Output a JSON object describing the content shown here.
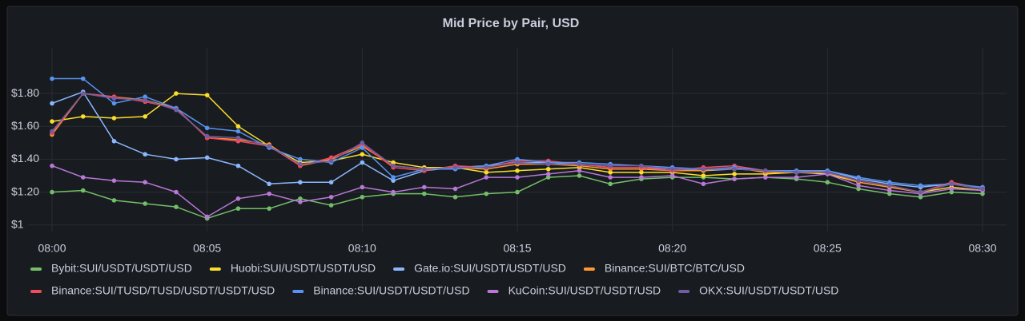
{
  "chart_data": {
    "type": "line",
    "title": "Mid Price by Pair, USD",
    "categories": [
      "08:00",
      null,
      null,
      null,
      null,
      "08:05",
      null,
      null,
      null,
      null,
      "08:10",
      null,
      null,
      null,
      null,
      "08:15",
      null,
      null,
      null,
      null,
      "08:20",
      null,
      null,
      null,
      null,
      "08:25",
      null,
      null,
      null,
      null,
      "08:30"
    ],
    "ylim": [
      0.96,
      1.98
    ],
    "yticks": [
      {
        "value": 1,
        "label": "$1"
      },
      {
        "value": 1.2,
        "label": "$1.20"
      },
      {
        "value": 1.4,
        "label": "$1.40"
      },
      {
        "value": 1.6,
        "label": "$1.60"
      },
      {
        "value": 1.8,
        "label": "$1.80"
      }
    ],
    "grid": true,
    "legend": "bottom",
    "series": [
      {
        "name": "Bybit:SUI/USDT/USDT/USD",
        "color": "#73bf69",
        "values": [
          1.2,
          1.21,
          1.15,
          1.13,
          1.11,
          1.04,
          1.1,
          1.1,
          1.16,
          1.12,
          1.17,
          1.19,
          1.19,
          1.17,
          1.19,
          1.2,
          1.29,
          1.3,
          1.25,
          1.28,
          1.29,
          1.29,
          1.28,
          1.29,
          1.28,
          1.26,
          1.22,
          1.19,
          1.17,
          1.2,
          1.19
        ]
      },
      {
        "name": "Huobi:SUI/USDT/USDT/USD",
        "color": "#fade2a",
        "values": [
          1.63,
          1.66,
          1.65,
          1.66,
          1.8,
          1.79,
          1.6,
          1.48,
          1.38,
          1.39,
          1.43,
          1.38,
          1.35,
          1.35,
          1.32,
          1.33,
          1.34,
          1.35,
          1.32,
          1.32,
          1.32,
          1.3,
          1.31,
          1.31,
          1.32,
          1.31,
          1.26,
          1.23,
          1.2,
          1.23,
          1.21
        ]
      },
      {
        "name": "Gate.io:SUI/USDT/USDT/USD",
        "color": "#8ab8ff",
        "values": [
          1.74,
          1.81,
          1.51,
          1.43,
          1.4,
          1.41,
          1.36,
          1.25,
          1.26,
          1.26,
          1.38,
          1.27,
          1.33,
          1.35,
          1.36,
          1.38,
          1.38,
          1.37,
          1.35,
          1.35,
          1.34,
          1.33,
          1.34,
          1.33,
          1.32,
          1.33,
          1.28,
          1.25,
          1.23,
          1.25,
          1.22
        ]
      },
      {
        "name": "Binance:SUI/BTC/BTC/USD",
        "color": "#ff9830",
        "values": [
          1.55,
          1.8,
          1.78,
          1.76,
          1.71,
          1.53,
          1.52,
          1.49,
          1.36,
          1.4,
          1.48,
          1.36,
          1.34,
          1.35,
          1.34,
          1.37,
          1.37,
          1.36,
          1.34,
          1.34,
          1.33,
          1.33,
          1.35,
          1.32,
          1.32,
          1.32,
          1.26,
          1.23,
          1.2,
          1.25,
          1.22
        ]
      },
      {
        "name": "Binance:SUI/TUSD/TUSD/USDT/USDT/USD",
        "color": "#f2495c",
        "values": [
          1.56,
          1.8,
          1.78,
          1.75,
          1.71,
          1.53,
          1.51,
          1.48,
          1.36,
          1.41,
          1.49,
          1.35,
          1.33,
          1.36,
          1.35,
          1.39,
          1.39,
          1.37,
          1.35,
          1.35,
          1.33,
          1.35,
          1.36,
          1.33,
          1.33,
          1.32,
          1.27,
          1.24,
          1.2,
          1.26,
          1.22
        ]
      },
      {
        "name": "Binance:SUI/USDT/USDT/USD",
        "color": "#5794f2",
        "values": [
          1.89,
          1.89,
          1.74,
          1.78,
          1.71,
          1.59,
          1.57,
          1.47,
          1.4,
          1.38,
          1.47,
          1.29,
          1.34,
          1.34,
          1.36,
          1.4,
          1.38,
          1.38,
          1.37,
          1.36,
          1.35,
          1.34,
          1.35,
          1.33,
          1.33,
          1.33,
          1.29,
          1.26,
          1.24,
          1.25,
          1.23
        ]
      },
      {
        "name": "KuCoin:SUI/USDT/USDT/USD",
        "color": "#b877d9",
        "values": [
          1.36,
          1.29,
          1.27,
          1.26,
          1.2,
          1.05,
          1.16,
          1.19,
          1.14,
          1.17,
          1.23,
          1.2,
          1.23,
          1.22,
          1.29,
          1.29,
          1.31,
          1.33,
          1.29,
          1.29,
          1.3,
          1.25,
          1.28,
          1.29,
          1.29,
          1.31,
          1.24,
          1.21,
          1.19,
          1.22,
          1.21
        ]
      },
      {
        "name": "OKX:SUI/USDT/USDT/USD",
        "color": "#705da0",
        "values": [
          1.57,
          1.8,
          1.77,
          1.76,
          1.7,
          1.54,
          1.53,
          1.48,
          1.37,
          1.39,
          1.5,
          1.36,
          1.34,
          1.35,
          1.35,
          1.38,
          1.37,
          1.37,
          1.36,
          1.36,
          1.34,
          1.34,
          1.34,
          1.33,
          1.32,
          1.32,
          1.27,
          1.24,
          1.2,
          1.25,
          1.22
        ]
      }
    ]
  }
}
